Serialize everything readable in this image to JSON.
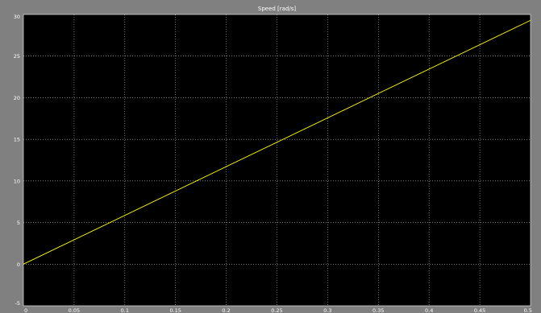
{
  "chart_data": {
    "type": "line",
    "title": "Speed [rad/s]",
    "xlabel": "",
    "ylabel": "",
    "xlim": [
      0,
      0.5
    ],
    "ylim": [
      -5,
      30
    ],
    "x_ticks": [
      0,
      0.05,
      0.1,
      0.15,
      0.2,
      0.25,
      0.3,
      0.35,
      0.4,
      0.45,
      0.5
    ],
    "x_tick_labels": [
      "0",
      "0.05",
      "0.1",
      "0.15",
      "0.2",
      "0.25",
      "0.3",
      "0.35",
      "0.4",
      "0.45",
      "0.5"
    ],
    "y_ticks": [
      -5,
      0,
      5,
      10,
      15,
      20,
      25,
      30
    ],
    "y_tick_labels": [
      "-5",
      "0",
      "5",
      "10",
      "15",
      "20",
      "25",
      "30"
    ],
    "grid": true,
    "background": "#000000",
    "axes_color": "#ffffff",
    "figure_color": "#808080",
    "series": [
      {
        "color": "#ffff00",
        "x": [
          0,
          0.5
        ],
        "y": [
          0,
          29.3
        ]
      }
    ]
  }
}
